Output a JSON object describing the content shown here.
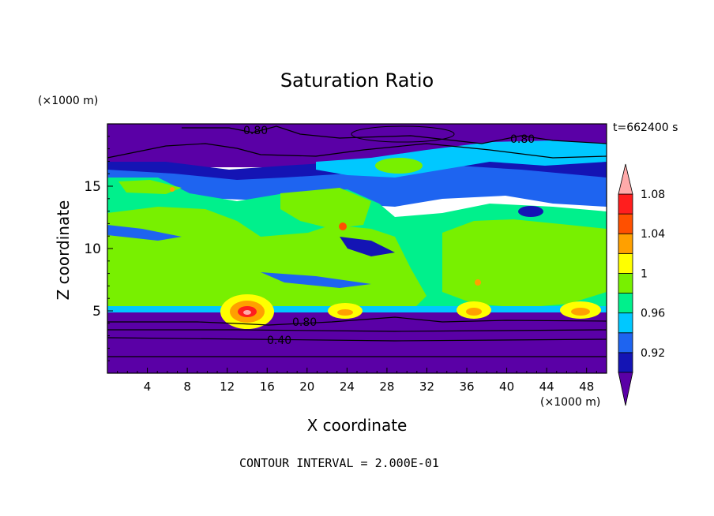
{
  "chart_data": {
    "type": "heatmap",
    "title": "Saturation Ratio",
    "xlabel": "X coordinate",
    "ylabel": "Z coordinate",
    "x_unit": "(×1000 m)",
    "y_unit": "(×1000 m)",
    "time_label": "t=662400 s",
    "footer": "CONTOUR INTERVAL = 2.000E-01",
    "xlim": [
      0,
      50
    ],
    "ylim": [
      0,
      20
    ],
    "x_ticks": [
      "4",
      "8",
      "12",
      "16",
      "20",
      "24",
      "28",
      "32",
      "36",
      "40",
      "44",
      "48"
    ],
    "y_ticks": [
      "5",
      "10",
      "15"
    ],
    "colorbar": {
      "levels": [
        0.92,
        0.96,
        1,
        1.04,
        1.08
      ],
      "tick_labels": [
        "0.92",
        "0.96",
        "1",
        "1.04",
        "1.08"
      ],
      "colors": [
        "#5a00a6",
        "#1414b4",
        "#1e64f0",
        "#00c8ff",
        "#00f08c",
        "#78f000",
        "#ffff00",
        "#ffa000",
        "#ff5000",
        "#ff1e1e",
        "#ffaaaa"
      ]
    },
    "contour_labels": [
      "0.80",
      "0.80",
      "0.80",
      "0.40"
    ]
  }
}
